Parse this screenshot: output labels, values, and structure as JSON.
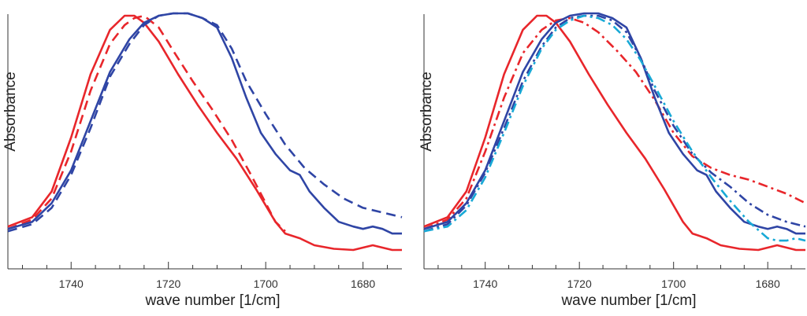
{
  "chart_data": [
    {
      "type": "line",
      "xlabel": "wave number [1/cm]",
      "ylabel": "Absorbance",
      "xlim": [
        1753,
        1672
      ],
      "x_reversed": true,
      "ylim": [
        0,
        1.0
      ],
      "xticks": [
        1740,
        1720,
        1700,
        1680
      ],
      "grid": false,
      "legend": "none",
      "series": [
        {
          "color": "#e8262b",
          "style": "solid",
          "x": [
            1753,
            1748,
            1744,
            1740,
            1736,
            1732,
            1729,
            1727,
            1725,
            1722,
            1718,
            1714,
            1710,
            1706,
            1702,
            1698,
            1696,
            1693,
            1690,
            1686,
            1682,
            1680,
            1678,
            1676,
            1674,
            1672
          ],
          "y": [
            0.1,
            0.14,
            0.25,
            0.48,
            0.75,
            0.94,
            1.0,
            1.0,
            0.97,
            0.89,
            0.75,
            0.62,
            0.5,
            0.39,
            0.26,
            0.12,
            0.07,
            0.05,
            0.02,
            0.005,
            0.0,
            0.01,
            0.02,
            0.01,
            0.0,
            0.0
          ]
        },
        {
          "color": "#e8262b",
          "style": "dashed",
          "x": [
            1753,
            1748,
            1744,
            1740,
            1736,
            1732,
            1729,
            1727,
            1725,
            1722,
            1719,
            1715,
            1711,
            1707,
            1703,
            1700,
            1698,
            1696
          ],
          "y": [
            0.09,
            0.13,
            0.22,
            0.42,
            0.68,
            0.88,
            0.96,
            0.99,
            1.0,
            0.95,
            0.85,
            0.72,
            0.6,
            0.47,
            0.32,
            0.2,
            0.12,
            0.08
          ]
        },
        {
          "color": "#2f45a5",
          "style": "solid",
          "x": [
            1753,
            1748,
            1744,
            1740,
            1736,
            1732,
            1728,
            1725,
            1722,
            1719,
            1716,
            1713,
            1710,
            1707,
            1704,
            1701,
            1698,
            1695,
            1693,
            1691,
            1688,
            1685,
            1682,
            1680,
            1678,
            1676,
            1674,
            1672
          ],
          "y": [
            0.09,
            0.12,
            0.2,
            0.34,
            0.55,
            0.76,
            0.9,
            0.97,
            1.0,
            1.01,
            1.01,
            0.99,
            0.95,
            0.82,
            0.65,
            0.5,
            0.41,
            0.34,
            0.32,
            0.25,
            0.18,
            0.12,
            0.1,
            0.09,
            0.1,
            0.09,
            0.07,
            0.07
          ]
        },
        {
          "color": "#2f45a5",
          "style": "dashed",
          "x": [
            1753,
            1748,
            1744,
            1740,
            1736,
            1732,
            1728,
            1725,
            1722,
            1719,
            1716,
            1713,
            1710,
            1707,
            1704,
            1700,
            1696,
            1692,
            1688,
            1684,
            1680,
            1676,
            1672
          ],
          "y": [
            0.08,
            0.11,
            0.18,
            0.32,
            0.52,
            0.74,
            0.88,
            0.96,
            1.0,
            1.01,
            1.01,
            0.99,
            0.96,
            0.86,
            0.72,
            0.58,
            0.45,
            0.35,
            0.28,
            0.22,
            0.18,
            0.16,
            0.14
          ]
        }
      ]
    },
    {
      "type": "line",
      "xlabel": "wave number [1/cm]",
      "ylabel": "Absorbance",
      "xlim": [
        1753,
        1672
      ],
      "x_reversed": true,
      "ylim": [
        0,
        1.0
      ],
      "xticks": [
        1740,
        1720,
        1700,
        1680
      ],
      "grid": false,
      "legend": "none",
      "series": [
        {
          "color": "#e8262b",
          "style": "solid",
          "x": [
            1753,
            1748,
            1744,
            1740,
            1736,
            1732,
            1729,
            1727,
            1725,
            1722,
            1718,
            1714,
            1710,
            1706,
            1702,
            1698,
            1696,
            1693,
            1690,
            1686,
            1682,
            1680,
            1678,
            1676,
            1674,
            1672
          ],
          "y": [
            0.1,
            0.14,
            0.25,
            0.48,
            0.75,
            0.94,
            1.0,
            1.0,
            0.97,
            0.89,
            0.75,
            0.62,
            0.5,
            0.39,
            0.26,
            0.12,
            0.07,
            0.05,
            0.02,
            0.005,
            0.0,
            0.01,
            0.02,
            0.01,
            0.0,
            0.0
          ]
        },
        {
          "color": "#e8262b",
          "style": "dashdot",
          "x": [
            1753,
            1748,
            1744,
            1740,
            1736,
            1732,
            1728,
            1725,
            1722,
            1719,
            1716,
            1712,
            1708,
            1704,
            1700,
            1696,
            1692,
            1688,
            1684,
            1680,
            1676,
            1672
          ],
          "y": [
            0.09,
            0.13,
            0.22,
            0.42,
            0.65,
            0.84,
            0.94,
            0.98,
            0.99,
            0.97,
            0.93,
            0.85,
            0.76,
            0.64,
            0.5,
            0.4,
            0.35,
            0.32,
            0.3,
            0.27,
            0.24,
            0.2
          ]
        },
        {
          "color": "#2f45a5",
          "style": "solid",
          "x": [
            1753,
            1748,
            1744,
            1740,
            1736,
            1732,
            1728,
            1725,
            1722,
            1719,
            1716,
            1713,
            1710,
            1707,
            1704,
            1701,
            1698,
            1695,
            1693,
            1691,
            1688,
            1685,
            1682,
            1680,
            1678,
            1676,
            1674,
            1672
          ],
          "y": [
            0.09,
            0.12,
            0.2,
            0.34,
            0.55,
            0.76,
            0.9,
            0.97,
            1.0,
            1.01,
            1.01,
            0.99,
            0.95,
            0.82,
            0.65,
            0.5,
            0.41,
            0.34,
            0.32,
            0.25,
            0.18,
            0.12,
            0.1,
            0.09,
            0.1,
            0.09,
            0.07,
            0.07
          ]
        },
        {
          "color": "#2f45a5",
          "style": "dashdot",
          "x": [
            1753,
            1748,
            1744,
            1740,
            1736,
            1732,
            1728,
            1725,
            1722,
            1719,
            1716,
            1713,
            1710,
            1707,
            1704,
            1700,
            1696,
            1692,
            1688,
            1684,
            1680,
            1676,
            1672
          ],
          "y": [
            0.08,
            0.11,
            0.19,
            0.33,
            0.52,
            0.72,
            0.87,
            0.95,
            0.99,
            1.0,
            1.0,
            0.98,
            0.93,
            0.82,
            0.68,
            0.53,
            0.41,
            0.33,
            0.27,
            0.2,
            0.15,
            0.12,
            0.1
          ]
        },
        {
          "color": "#18a9d6",
          "style": "dashdot",
          "x": [
            1753,
            1748,
            1744,
            1740,
            1736,
            1732,
            1728,
            1725,
            1722,
            1719,
            1716,
            1713,
            1710,
            1707,
            1704,
            1700,
            1696,
            1692,
            1688,
            1684,
            1680,
            1678,
            1676,
            1674,
            1672
          ],
          "y": [
            0.08,
            0.1,
            0.17,
            0.31,
            0.5,
            0.7,
            0.86,
            0.94,
            0.98,
            1.0,
            0.99,
            0.96,
            0.9,
            0.81,
            0.7,
            0.55,
            0.42,
            0.31,
            0.21,
            0.12,
            0.05,
            0.04,
            0.04,
            0.05,
            0.04
          ]
        }
      ]
    }
  ]
}
